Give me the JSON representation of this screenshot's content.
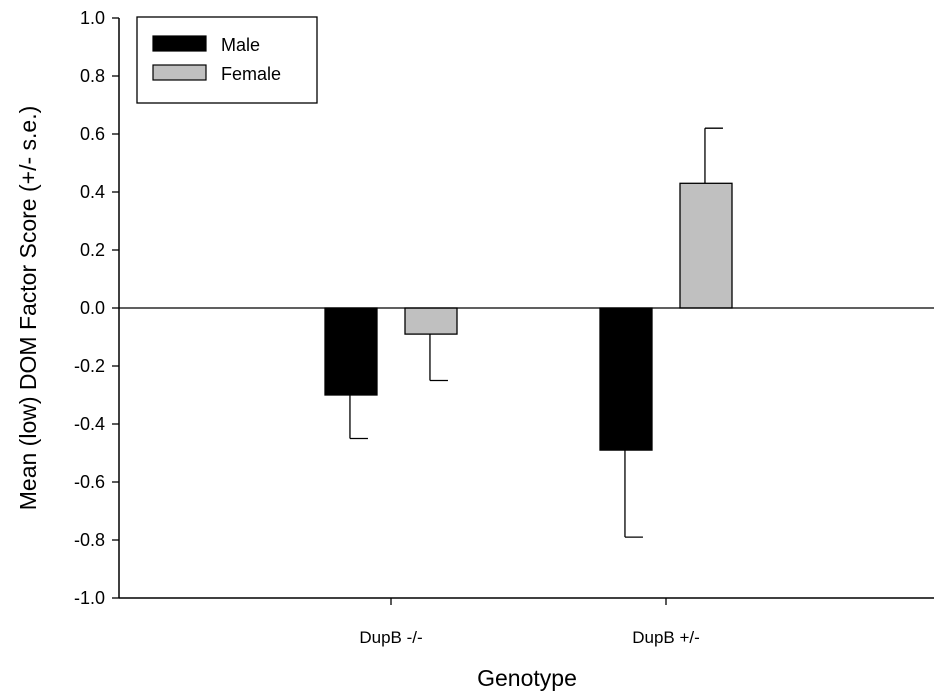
{
  "chart_data": {
    "type": "bar",
    "title": "",
    "xlabel": "Genotype",
    "ylabel": "Mean (low) DOM Factor Score (+/- s.e.)",
    "categories": [
      "DupB -/-",
      "DupB +/-"
    ],
    "series": [
      {
        "name": "Male",
        "color": "#000000",
        "values": [
          -0.3,
          -0.49
        ],
        "errors": [
          0.15,
          0.3
        ]
      },
      {
        "name": "Female",
        "color": "#c0c0c0",
        "values": [
          -0.09,
          0.43
        ],
        "errors": [
          0.16,
          0.19
        ]
      }
    ],
    "ylim": [
      -1.0,
      1.0
    ],
    "yticks": [
      "-1.0",
      "-0.8",
      "-0.6",
      "-0.4",
      "-0.2",
      "0.0",
      "0.2",
      "0.4",
      "0.6",
      "0.8",
      "1.0"
    ],
    "grid": false,
    "zero_line": true,
    "legend_position": "top-left"
  }
}
